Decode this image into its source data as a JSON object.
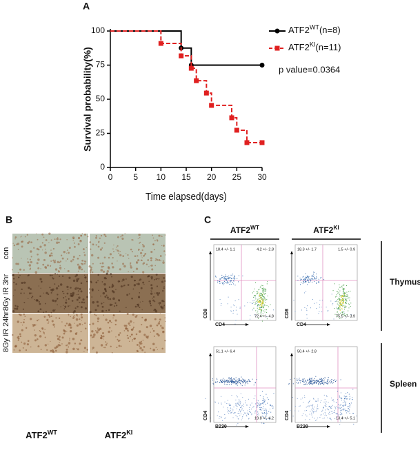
{
  "chart_data": {
    "type": "line",
    "step": true,
    "panel_label": "A",
    "ylabel": "Survival probability(%)",
    "xlabel": "Time elapsed(days)",
    "xlim": [
      0,
      30
    ],
    "xticks": [
      0,
      5,
      10,
      15,
      20,
      25,
      30
    ],
    "ylim": [
      0,
      100
    ],
    "yticks": [
      0,
      25,
      50,
      75,
      100
    ],
    "annotation": "p value=0.0364",
    "series": [
      {
        "name": "ATF2",
        "name_superscript": "WT",
        "name_suffix": "(n=8)",
        "color": "#000000",
        "marker": "circle",
        "dashed": false,
        "x": [
          0,
          14,
          16,
          30
        ],
        "values": [
          100,
          87.5,
          75,
          75
        ]
      },
      {
        "name": "ATF2",
        "name_superscript": "KI",
        "name_suffix": "(n=11)",
        "color": "#e02020",
        "marker": "square",
        "dashed": true,
        "x": [
          0,
          10,
          14,
          16,
          17,
          19,
          20,
          24,
          25,
          27,
          30
        ],
        "values": [
          100,
          90.9,
          81.8,
          72.7,
          63.6,
          54.5,
          45.5,
          36.4,
          27.3,
          18.2,
          18.2
        ]
      }
    ]
  },
  "panel_b": {
    "label": "B",
    "rows": [
      "con",
      "8Gy IR 3hr",
      "8Gy IR 24hr"
    ],
    "columns": [
      {
        "text": "ATF2",
        "superscript": "WT"
      },
      {
        "text": "ATF2",
        "superscript": "KI"
      }
    ]
  },
  "panel_c": {
    "label": "C",
    "columns": [
      {
        "text": "ATF2",
        "superscript": "WT"
      },
      {
        "text": "ATF2",
        "superscript": "KI"
      }
    ],
    "rows": [
      {
        "tissue": "Thymus",
        "y_axis": "CD8",
        "x_axis": "CD4",
        "plots": [
          {
            "upper_left": "18.4 +/- 1.1",
            "upper_right": "4.2 +/- 2.8",
            "lower_right": "72.4 +/- 4.8"
          },
          {
            "upper_left": "18.3 +/- 1.7",
            "upper_right": "1.5 +/- 0.9",
            "lower_right": "75.5 +/- 3.9"
          }
        ]
      },
      {
        "tissue": "Spleen",
        "y_axis": "CD4",
        "x_axis": "B220",
        "plots": [
          {
            "upper_left": "51.1 +/- 6.4",
            "lower_right": "19.8 +/- 4.2"
          },
          {
            "upper_left": "50.4 +/- 2.8",
            "lower_right": "13.4 +/- 5.1"
          }
        ]
      }
    ]
  }
}
